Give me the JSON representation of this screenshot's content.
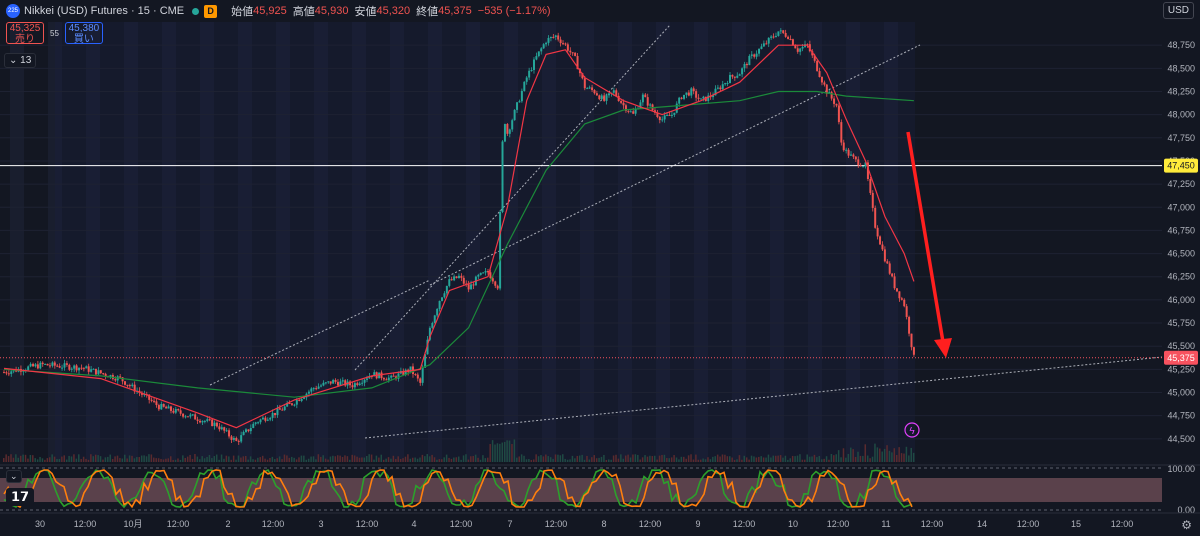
{
  "header": {
    "symbol_badge": "225",
    "title": "Nikkei (USD) Futures · 15 · CME",
    "interval_badge": "D",
    "ohlc": [
      {
        "label": "始値",
        "value": "45,925"
      },
      {
        "label": "高値",
        "value": "45,930"
      },
      {
        "label": "安値",
        "value": "45,320"
      },
      {
        "label": "終値",
        "value": "45,375"
      }
    ],
    "change": "−535 (−1.17%)",
    "sell_price": "45,325",
    "sell_label": "売り",
    "spread": "55",
    "buy_price": "45,380",
    "buy_label": "買い",
    "indicator_count": "13",
    "currency": "USD"
  },
  "colors": {
    "background": "#131722",
    "up": "#26a69a",
    "down": "#ef5350",
    "ma_fast": "#f23645",
    "ma_slow": "#1b8a3a",
    "arrow": "#ff1f1f",
    "highlight_line": "#ffffff",
    "price_label": "#f7525f",
    "hline_label": "#ffeb3b"
  },
  "chart_data": {
    "type": "candlestick",
    "ylim": [
      44250,
      49000
    ],
    "y_ticks": [
      "48,750",
      "48,500",
      "48,250",
      "48,000",
      "47,750",
      "47,500",
      "47,250",
      "47,000",
      "46,750",
      "46,500",
      "46,250",
      "46,000",
      "45,750",
      "45,500",
      "45,250",
      "45,000",
      "44,750",
      "44,500"
    ],
    "x_labels": [
      "30",
      "12:00",
      "10月",
      "12:00",
      "2",
      "12:00",
      "3",
      "12:00",
      "4",
      "12:00",
      "7",
      "12:00",
      "8",
      "12:00",
      "9",
      "12:00",
      "10",
      "12:00",
      "11",
      "12:00",
      "14",
      "12:00",
      "15",
      "12:00"
    ],
    "price_path": [
      [
        0,
        45220
      ],
      [
        4,
        45300
      ],
      [
        8,
        45270
      ],
      [
        12,
        45150
      ],
      [
        16,
        44850
      ],
      [
        20,
        44720
      ],
      [
        22,
        44650
      ],
      [
        24,
        44470
      ],
      [
        26,
        44680
      ],
      [
        28,
        44780
      ],
      [
        30,
        44900
      ],
      [
        32,
        45050
      ],
      [
        34,
        45120
      ],
      [
        36,
        45080
      ],
      [
        38,
        45200
      ],
      [
        40,
        45150
      ],
      [
        42,
        45250
      ],
      [
        43,
        45100
      ],
      [
        44,
        45700
      ],
      [
        45,
        46000
      ],
      [
        46,
        46200
      ],
      [
        47,
        46250
      ],
      [
        48,
        46120
      ],
      [
        49,
        46250
      ],
      [
        50,
        46300
      ],
      [
        51,
        46150
      ],
      [
        51.6,
        48000
      ],
      [
        52,
        47800
      ],
      [
        53,
        48100
      ],
      [
        54,
        48400
      ],
      [
        55,
        48620
      ],
      [
        56,
        48800
      ],
      [
        57,
        48850
      ],
      [
        58,
        48750
      ],
      [
        59,
        48600
      ],
      [
        60,
        48300
      ],
      [
        61,
        48250
      ],
      [
        62,
        48150
      ],
      [
        63,
        48250
      ],
      [
        64,
        48100
      ],
      [
        65,
        48000
      ],
      [
        66,
        48200
      ],
      [
        67,
        48050
      ],
      [
        68,
        47950
      ],
      [
        69,
        48000
      ],
      [
        70,
        48200
      ],
      [
        71,
        48250
      ],
      [
        72,
        48150
      ],
      [
        73,
        48200
      ],
      [
        74,
        48300
      ],
      [
        75,
        48400
      ],
      [
        76,
        48450
      ],
      [
        77,
        48600
      ],
      [
        78,
        48700
      ],
      [
        79,
        48800
      ],
      [
        80,
        48900
      ],
      [
        81,
        48850
      ],
      [
        82,
        48700
      ],
      [
        83,
        48750
      ],
      [
        84,
        48500
      ],
      [
        85,
        48250
      ],
      [
        86,
        48100
      ],
      [
        86.5,
        47700
      ],
      [
        87,
        47600
      ],
      [
        88,
        47500
      ],
      [
        89,
        47450
      ],
      [
        90,
        46800
      ],
      [
        91,
        46450
      ],
      [
        92,
        46150
      ],
      [
        93,
        45950
      ],
      [
        94,
        45375
      ]
    ],
    "last_index": 94,
    "fast_ma": [
      [
        0,
        45260
      ],
      [
        10,
        45150
      ],
      [
        20,
        44780
      ],
      [
        24,
        44620
      ],
      [
        30,
        44920
      ],
      [
        38,
        45180
      ],
      [
        43,
        45250
      ],
      [
        44,
        45600
      ],
      [
        46,
        46100
      ],
      [
        50,
        46250
      ],
      [
        52,
        47000
      ],
      [
        54,
        48150
      ],
      [
        56,
        48650
      ],
      [
        58,
        48700
      ],
      [
        60,
        48400
      ],
      [
        64,
        48150
      ],
      [
        68,
        48000
      ],
      [
        72,
        48150
      ],
      [
        76,
        48350
      ],
      [
        80,
        48750
      ],
      [
        83,
        48750
      ],
      [
        85,
        48450
      ],
      [
        87,
        47950
      ],
      [
        89,
        47500
      ],
      [
        91,
        46900
      ],
      [
        93,
        46500
      ],
      [
        94,
        46200
      ]
    ],
    "slow_ma": [
      [
        0,
        45250
      ],
      [
        10,
        45180
      ],
      [
        20,
        45050
      ],
      [
        30,
        44950
      ],
      [
        38,
        45050
      ],
      [
        44,
        45300
      ],
      [
        48,
        45700
      ],
      [
        52,
        46600
      ],
      [
        56,
        47400
      ],
      [
        60,
        47900
      ],
      [
        64,
        48050
      ],
      [
        70,
        48100
      ],
      [
        76,
        48150
      ],
      [
        80,
        48250
      ],
      [
        84,
        48250
      ],
      [
        87,
        48200
      ],
      [
        94,
        48150
      ]
    ],
    "current_price": 45375,
    "current_label": "45,375",
    "hline": 47450,
    "hline_label": "47,450"
  },
  "footer": {
    "oscillator_top": "100.00",
    "oscillator_bottom": "0.00"
  }
}
